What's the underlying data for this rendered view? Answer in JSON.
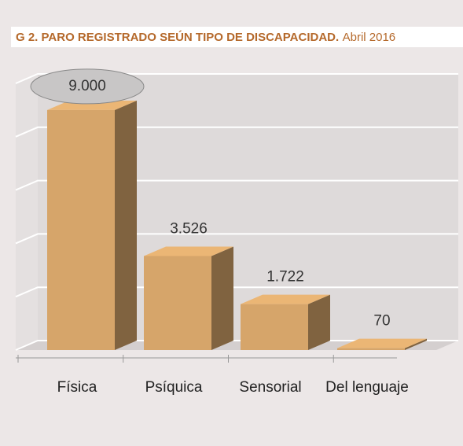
{
  "chart_data": {
    "type": "bar3d",
    "title": "G 2. PARO REGISTRADO SEÚN TIPO DE DISCAPACIDAD.",
    "subtitle": "Abril 2016",
    "categories": [
      "Física",
      "Psíquica",
      "Sensorial",
      "Del lenguaje"
    ],
    "values": [
      9000,
      3526,
      1722,
      70
    ],
    "value_labels": [
      "9.000",
      "3.526",
      "1.722",
      "70"
    ],
    "color": "#d6a56a",
    "ylim": [
      0,
      10000
    ],
    "yticks": [
      0,
      2000,
      4000,
      6000,
      8000,
      10000
    ],
    "grid": true
  }
}
